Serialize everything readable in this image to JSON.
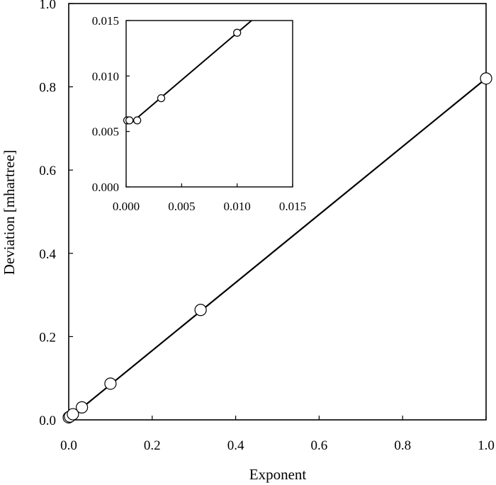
{
  "chart_data": [
    {
      "type": "scatter",
      "title": "",
      "xlabel": "Exponent",
      "ylabel": "Deviation [mhartree]",
      "xlim": [
        0,
        1
      ],
      "ylim": [
        0,
        1
      ],
      "xticks": [
        "0.0",
        "0.2",
        "0.4",
        "0.6",
        "0.8",
        "1.0"
      ],
      "yticks": [
        "0.0",
        "0.2",
        "0.4",
        "0.6",
        "0.8",
        "1.0"
      ],
      "grid": false,
      "legend": "none",
      "series": [
        {
          "x": [
            0.0,
            0.003,
            0.01,
            0.0316,
            0.1,
            0.316,
            1.0
          ],
          "y": [
            0.006,
            0.008,
            0.0135,
            0.03,
            0.087,
            0.264,
            0.82
          ]
        }
      ],
      "fit_line": {
        "x": [
          0.0,
          1.0
        ],
        "y": [
          0.003,
          0.82
        ]
      }
    },
    {
      "type": "scatter",
      "title": "",
      "xlabel": "",
      "ylabel": "",
      "xlim": [
        0,
        0.015
      ],
      "ylim": [
        0,
        0.015
      ],
      "xticks": [
        "0.000",
        "0.005",
        "0.010",
        "0.015"
      ],
      "yticks": [
        "0.000",
        "0.005",
        "0.010",
        "0.015"
      ],
      "grid": false,
      "legend": "none",
      "series": [
        {
          "x": [
            0.0001,
            0.0003,
            0.001,
            0.00316,
            0.01
          ],
          "y": [
            0.006,
            0.006,
            0.006,
            0.008,
            0.0139
          ]
        }
      ],
      "fit_line": {
        "x": [
          0.0005,
          0.0113
        ],
        "y": [
          0.0058,
          0.015
        ]
      }
    }
  ],
  "colors": {
    "axis": "#000000",
    "marker_fill": "#ffffff",
    "line": "#000000"
  }
}
